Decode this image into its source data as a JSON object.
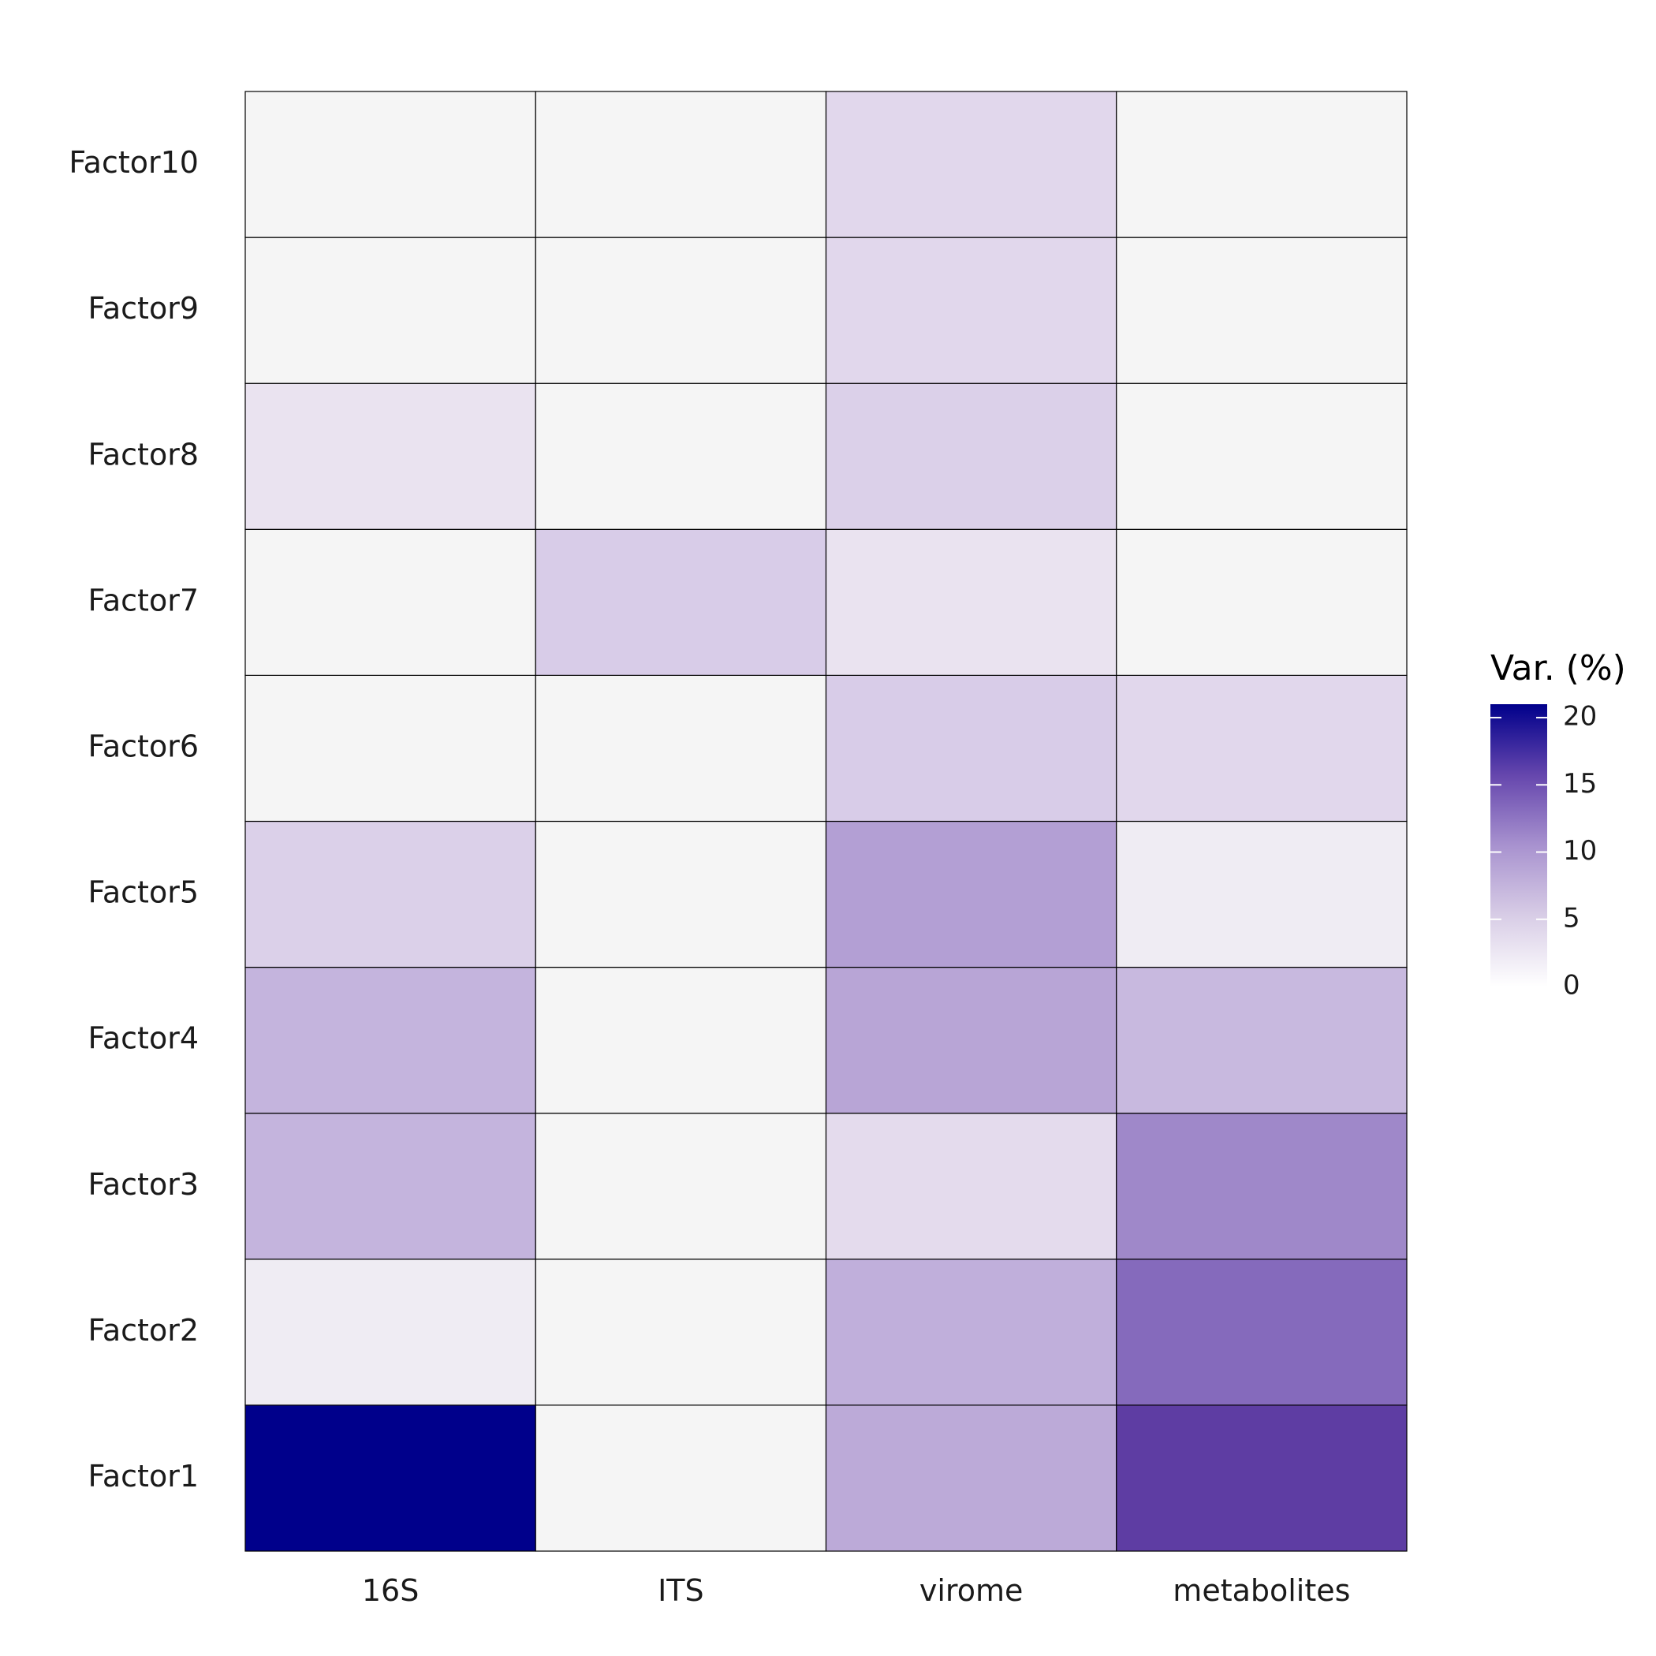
{
  "chart_data": {
    "type": "heatmap",
    "title": "",
    "xlabel": "",
    "ylabel": "",
    "x_categories": [
      "16S",
      "ITS",
      "virome",
      "metabolites"
    ],
    "y_categories": [
      "Factor1",
      "Factor2",
      "Factor3",
      "Factor4",
      "Factor5",
      "Factor6",
      "Factor7",
      "Factor8",
      "Factor9",
      "Factor10"
    ],
    "values": {
      "Factor1": [
        21.0,
        0.0,
        8.5,
        17.5
      ],
      "Factor2": [
        1.0,
        0.0,
        8.0,
        14.0
      ],
      "Factor3": [
        7.5,
        0.0,
        3.0,
        11.5
      ],
      "Factor4": [
        7.5,
        0.0,
        9.0,
        7.0
      ],
      "Factor5": [
        4.5,
        0.0,
        9.5,
        1.0
      ],
      "Factor6": [
        0.0,
        0.0,
        5.0,
        3.5
      ],
      "Factor7": [
        0.0,
        5.0,
        2.0,
        0.0
      ],
      "Factor8": [
        2.0,
        0.0,
        4.5,
        0.0
      ],
      "Factor9": [
        0.0,
        0.0,
        3.5,
        0.0
      ],
      "Factor10": [
        0.0,
        0.0,
        3.5,
        0.0
      ]
    },
    "colorbar": {
      "title": "Var. (%)",
      "range": [
        0,
        21
      ],
      "ticks": [
        0,
        5,
        10,
        15,
        20
      ],
      "low_color": "#f5f5f5",
      "high_color": "#00008b"
    },
    "legend_position": "right",
    "grid": false
  }
}
